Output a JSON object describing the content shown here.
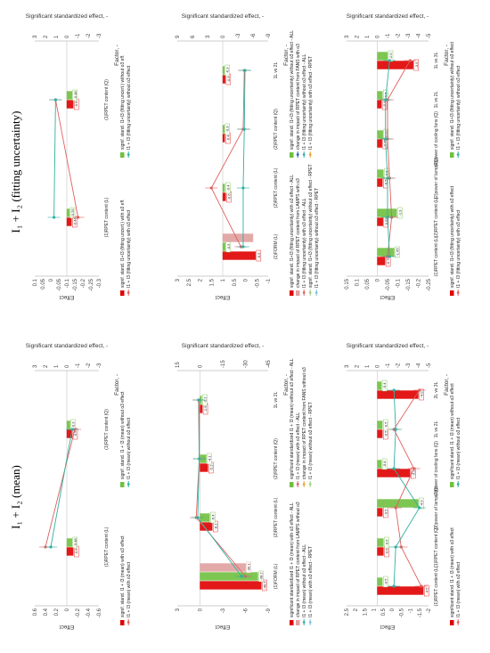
{
  "columns": {
    "left_title": "I₁ + I₂ (fitting uncertainty)",
    "right_title": "I₁ + I₂ (mean)"
  },
  "chart_data": [
    {
      "type": "bar",
      "panel": "left-top",
      "ylabel": "Effect",
      "xlabel": "Factor, -",
      "y2label": "Significant standardized effect, -",
      "yticks": [
        "0.1",
        "0.05",
        "0",
        "-0.05",
        "-0.1",
        "-0.15",
        "-0.2",
        "-0.25",
        "-0.3"
      ],
      "y2ticks": [
        "3",
        "2",
        "1",
        "0",
        "-1",
        "-2",
        "-3"
      ],
      "ylim": [
        -0.3,
        0.1
      ],
      "y2lim": [
        -3,
        3
      ],
      "categories": [
        "(1)RPET content (L)",
        "(1)RPET content (Q)"
      ],
      "series": [
        {
          "name": "signif. stand. I1+I3 (fitting uncert.) with o3 eff.",
          "color": "#e00000",
          "values": [
            -0.44,
            -0.6
          ],
          "labels": [
            "-0.44",
            "-0.6"
          ]
        },
        {
          "name": "signif. stand. I1+I3 (fitting uncert.) without o3 eff.",
          "color": "#70c040",
          "values": [
            -0.25,
            -0.48
          ],
          "labels": [
            "-0.25",
            "-0.48"
          ]
        },
        {
          "name": "I1 + I3 (fitting uncertainty) with o3 effect",
          "color": "#e06060",
          "line": [
            -0.17,
            -0.03
          ]
        },
        {
          "name": "I1 + I3 (fitting uncertainty) without o3 effect",
          "color": "#30b0a0",
          "line": [
            -0.02,
            -0.03
          ]
        }
      ]
    },
    {
      "type": "bar",
      "panel": "right-top",
      "ylabel": "Effect",
      "xlabel": "Factor, -",
      "y2label": "Significant standardized effect, -",
      "yticks": [
        "0.6",
        "0.4",
        "0.2",
        "0",
        "-0.2",
        "-0.4",
        "-0.6"
      ],
      "y2ticks": [
        "3",
        "2",
        "1",
        "0",
        "-1",
        "-2",
        "-3"
      ],
      "ylim": [
        -0.6,
        0.6
      ],
      "y2lim": [
        -3,
        3
      ],
      "categories": [
        "(1)RPET content (L)",
        "(1)RPET content (Q)"
      ],
      "series": [
        {
          "name": "signif. stand. I1 + I3 (mean) with o3 effect",
          "color": "#e00000",
          "values": [
            -0.6,
            -0.5
          ],
          "labels": [
            "-0.6",
            "-0.5"
          ]
        },
        {
          "name": "signif. stand. I1 + I3 (mean) without o3 effect",
          "color": "#70c040",
          "values": [
            -0.48,
            -0.3
          ],
          "labels": [
            "-0.48",
            "-0.3"
          ]
        },
        {
          "name": "I1 + I3 (mean) with o3 effect",
          "color": "#e06060",
          "line": [
            0.4,
            -0.15
          ]
        },
        {
          "name": "I1 + I3 (mean) without o3 effect",
          "color": "#30b0a0",
          "line": [
            0.3,
            -0.1
          ]
        }
      ]
    },
    {
      "type": "bar",
      "panel": "left-middle",
      "ylabel": "Effect",
      "xlabel": "Factor, -",
      "y2label": "Significant standardized effect, -",
      "yticks": [
        "3",
        "2.5",
        "2",
        "1.5",
        "1",
        "0.5",
        "0",
        "-0.5",
        "-1"
      ],
      "y2ticks": [
        "9",
        "6",
        "3",
        "0",
        "-3",
        "-6",
        "-9"
      ],
      "ylim": [
        -1,
        3
      ],
      "y2lim": [
        -9,
        9
      ],
      "categories": [
        "(1)FORM (L)",
        "(2)RPET content (L)",
        "(2)RPET content (Q)",
        "1L vs 2L"
      ],
      "series": [
        {
          "name": "signif. stand. I1+I3 (fitting uncertainty) with o3 effect - ALL",
          "color": "#e00000",
          "values": [
            -6.5,
            -0.6,
            -0.4,
            -0.5
          ],
          "labels": [
            "-6.5",
            "-0.6",
            "-0.4",
            "-0.5"
          ]
        },
        {
          "name": "signif. stand. I1+I3 (fitting uncertainty) without o3 effect - ALL",
          "color": "#70c040",
          "values": [
            -0.5,
            -0.4,
            -0.3,
            -0.3
          ],
          "labels": [
            "-0.5",
            "-0.4",
            "-0.3",
            "-0.3"
          ]
        },
        {
          "name": "change in impact of RPET content from LAMPS with o3",
          "color": "#e0a0a0",
          "values": [
            -6.0,
            0,
            0,
            0
          ],
          "labels": [
            "",
            "",
            "",
            ""
          ]
        },
        {
          "name": "change in impact of RPET content from FANS with o3",
          "color": "#2060c0",
          "marker": true
        },
        {
          "name": "I1 + I3 (fitting uncertainty) with o3 effect - ALL",
          "color": "#e06060",
          "line": [
            0.2,
            1.5,
            0.1,
            0.05
          ]
        },
        {
          "name": "I1 + I3 (fitting uncertainty) without o3 effect - ALL",
          "color": "#30b0a0",
          "line": [
            0.1,
            0.1,
            0.05,
            0.02
          ]
        },
        {
          "name": "signif. stand. I1+I3 (fitting uncertainty) without o3 effect - RPET",
          "color": "#a0d080"
        },
        {
          "name": "I1 + I3 (fitting uncertainty) with o3 effect - RPET",
          "color": "#f0a030"
        },
        {
          "name": "I1 + I3 (fitting uncertainty) without o3 effect - RPET",
          "color": "#80c0e0"
        }
      ]
    },
    {
      "type": "bar",
      "panel": "right-middle",
      "ylabel": "Effect",
      "xlabel": "Factor, -",
      "y2label": "Significant standardized effect, -",
      "yticks": [
        "3",
        "0",
        "-3",
        "-6",
        "-9"
      ],
      "y2ticks": [
        "15",
        "0",
        "-15",
        "-30",
        "-45"
      ],
      "ylim": [
        -9,
        3
      ],
      "y2lim": [
        -45,
        15
      ],
      "categories": [
        "(1)FORM (L)",
        "(2)RPET content (L)",
        "(2)RPET content (Q)",
        "1L vs 2L"
      ],
      "series": [
        {
          "name": "significant standardized I1 + I3 (mean) with o3 effect - ALL",
          "color": "#e00000",
          "values": [
            -40.5,
            -8.1,
            -5.2,
            -1.5
          ],
          "labels": [
            "-40.5",
            "-8.1",
            "-5.2",
            "-1.5"
          ]
        },
        {
          "name": "significant standardized I1 + I3 (mean) without o3 effect - ALL",
          "color": "#70c040",
          "values": [
            -38.2,
            -6.4,
            -4.1,
            -1.1
          ],
          "labels": [
            "-38.2",
            "-6.4",
            "-4.1",
            "-1.1"
          ]
        },
        {
          "name": "change in impact of RPET content from LAMPS without o3",
          "color": "#e0a0a0",
          "values": [
            -30.1,
            0,
            0,
            0
          ],
          "labels": [
            "-30.1",
            "",
            "",
            ""
          ]
        },
        {
          "name": "I1 + I3 (mean) with o3 effect - ALL",
          "color": "#e06060",
          "line": [
            -6.0,
            0.5,
            0.1,
            0.2
          ]
        },
        {
          "name": "I1 + I3 (mean) without o3 effect - ALL",
          "color": "#30b0a0",
          "line": [
            -5.5,
            0.3,
            0.1,
            0.1
          ]
        },
        {
          "name": "change in impact of RPET content from FANS without o3",
          "color": "#f0a030"
        },
        {
          "name": "I1 + I3 (mean) with o3 effect - RPET",
          "color": "#80c0e0"
        },
        {
          "name": "I1 + I3 (mean) without o3 effect - RPET",
          "color": "#a0d080"
        }
      ]
    },
    {
      "type": "bar",
      "panel": "left-bottom",
      "ylabel": "Effect",
      "xlabel": "Factor, -",
      "y2label": "Significant standardized effect, -",
      "yticks": [
        "0.15",
        "0.1",
        "0.05",
        "0",
        "-0.05",
        "-0.1",
        "-0.15",
        "-0.2",
        "-0.25"
      ],
      "y2ticks": [
        "3",
        "2",
        "1",
        "0",
        "-1",
        "-2",
        "-3",
        "-4",
        "-5"
      ],
      "ylim": [
        -0.25,
        0.15
      ],
      "y2lim": [
        -5,
        3
      ],
      "categories": [
        "(1)RPET content (L)",
        "(2)RPET content (L)",
        "(2)power of lamps(Q)",
        "(2)power of cooling fans (Q)",
        "1L vs 2L",
        "1L vs 3L"
      ],
      "series": [
        {
          "name": "signif. stand. I1+I3 (fitting uncertainty) with o3 effect",
          "color": "#e00000",
          "values": [
            -0.75,
            -0.55,
            -0.5,
            -0.45,
            -0.4,
            -3.5
          ],
          "labels": [
            "-0.75",
            "-0.55",
            "-0.5",
            "-0.45",
            "-0.4",
            "-3.5"
          ]
        },
        {
          "name": "signif. stand. I1+I3 (fitting uncertainty) without o3 effect",
          "color": "#70c040",
          "values": [
            -1.65,
            -1.9,
            -0.6,
            -0.55,
            -0.5,
            -1.0
          ],
          "labels": [
            "-1.65",
            "-1.9",
            "-0.6",
            "-0.55",
            "-0.5",
            "-1.0"
          ]
        },
        {
          "name": "I1 + I3 (fitting uncertainty) with o3 effect",
          "color": "#e06060",
          "line": [
            -0.05,
            -0.07,
            -0.06,
            -0.05,
            -0.05,
            -0.16
          ]
        },
        {
          "name": "I1 + I3 (fitting uncertainty) without o3 effect",
          "color": "#30b0a0",
          "line": [
            -0.06,
            -0.05,
            -0.05,
            -0.04,
            -0.04,
            -0.06
          ]
        }
      ]
    },
    {
      "type": "bar",
      "panel": "right-bottom",
      "ylabel": "Effect",
      "xlabel": "Factor, -",
      "y2label": "Significant standardized effect, -",
      "yticks": [
        "2.5",
        "2",
        "1.5",
        "1",
        "0.5",
        "0",
        "-0.5",
        "-1",
        "-1.5",
        "-2"
      ],
      "y2ticks": [
        "3",
        "2",
        "1",
        "0",
        "-1",
        "-2",
        "-3",
        "-4",
        "-5"
      ],
      "ylim": [
        -2,
        2.5
      ],
      "y2lim": [
        -5,
        3
      ],
      "categories": [
        "(1)RPET content (L)",
        "(1)RPET content (Q)",
        "(2)power of lamps (Q)",
        "(2)power of cooling fans (Q)",
        "1L vs 2L",
        "2L vs 3L"
      ],
      "series": [
        {
          "name": "significant stand. I1 + I3 (mean) with o3 effect",
          "color": "#e00000",
          "values": [
            -4.5,
            -0.6,
            -0.5,
            -3.2,
            -0.5,
            -4.0
          ],
          "labels": [
            "-4.5",
            "-0.6",
            "-0.5",
            "-3.2",
            "-0.5",
            "-4.0"
          ]
        },
        {
          "name": "significant stand. I1 + I3 (mean) without o3 effect",
          "color": "#70c040",
          "values": [
            -0.5,
            -0.6,
            -4.0,
            -0.4,
            -0.5,
            -0.4
          ],
          "labels": [
            "-0.5",
            "-0.6",
            "-4.0",
            "-0.4",
            "-0.5",
            "-0.4"
          ]
        },
        {
          "name": "I1 + I3 (mean) with o3 effect",
          "color": "#e06060",
          "line": [
            -1.6,
            -0.5,
            -0.2,
            -1.2,
            -0.1,
            -1.5
          ]
        },
        {
          "name": "I1 + I3 (mean) without o3 effect",
          "color": "#30b0a0",
          "line": [
            -0.1,
            -0.2,
            -1.5,
            -0.1,
            -0.2,
            -0.1
          ]
        }
      ]
    }
  ]
}
